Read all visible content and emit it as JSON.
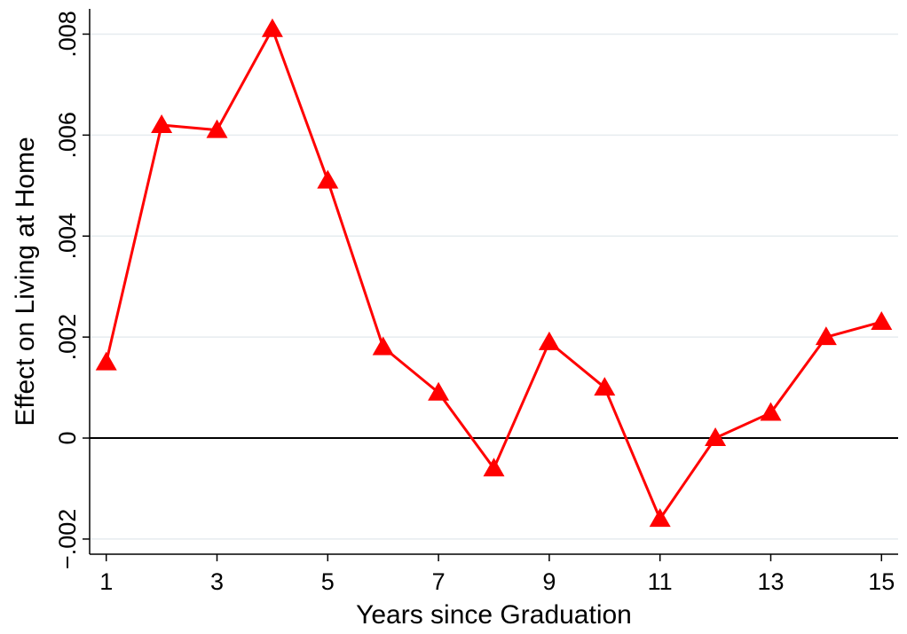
{
  "chart_data": {
    "type": "line",
    "title": "",
    "xlabel": "Years since Graduation",
    "ylabel": "Effect on Living at Home",
    "x": [
      1,
      2,
      3,
      4,
      5,
      6,
      7,
      8,
      9,
      10,
      11,
      12,
      13,
      14,
      15
    ],
    "series": [
      {
        "values": [
          0.0015,
          0.0062,
          0.0061,
          0.0081,
          0.0051,
          0.0018,
          0.0009,
          -0.0006,
          0.0019,
          0.001,
          -0.0016,
          0.0,
          0.0005,
          0.002,
          0.0023
        ],
        "color": "#ff0000",
        "marker": "triangle"
      }
    ],
    "xticks": [
      1,
      3,
      5,
      7,
      9,
      11,
      13,
      15
    ],
    "xtick_labels": [
      "1",
      "3",
      "5",
      "7",
      "9",
      "11",
      "13",
      "15"
    ],
    "yticks": [
      -0.002,
      0,
      0.002,
      0.004,
      0.006,
      0.008
    ],
    "ytick_labels": [
      "−.002",
      "0",
      ".002",
      ".004",
      ".006",
      ".008"
    ],
    "xlim": [
      0.7,
      15.3
    ],
    "ylim": [
      -0.0023,
      0.0085
    ],
    "grid": true,
    "reference_line_y": 0,
    "legend": "none"
  }
}
